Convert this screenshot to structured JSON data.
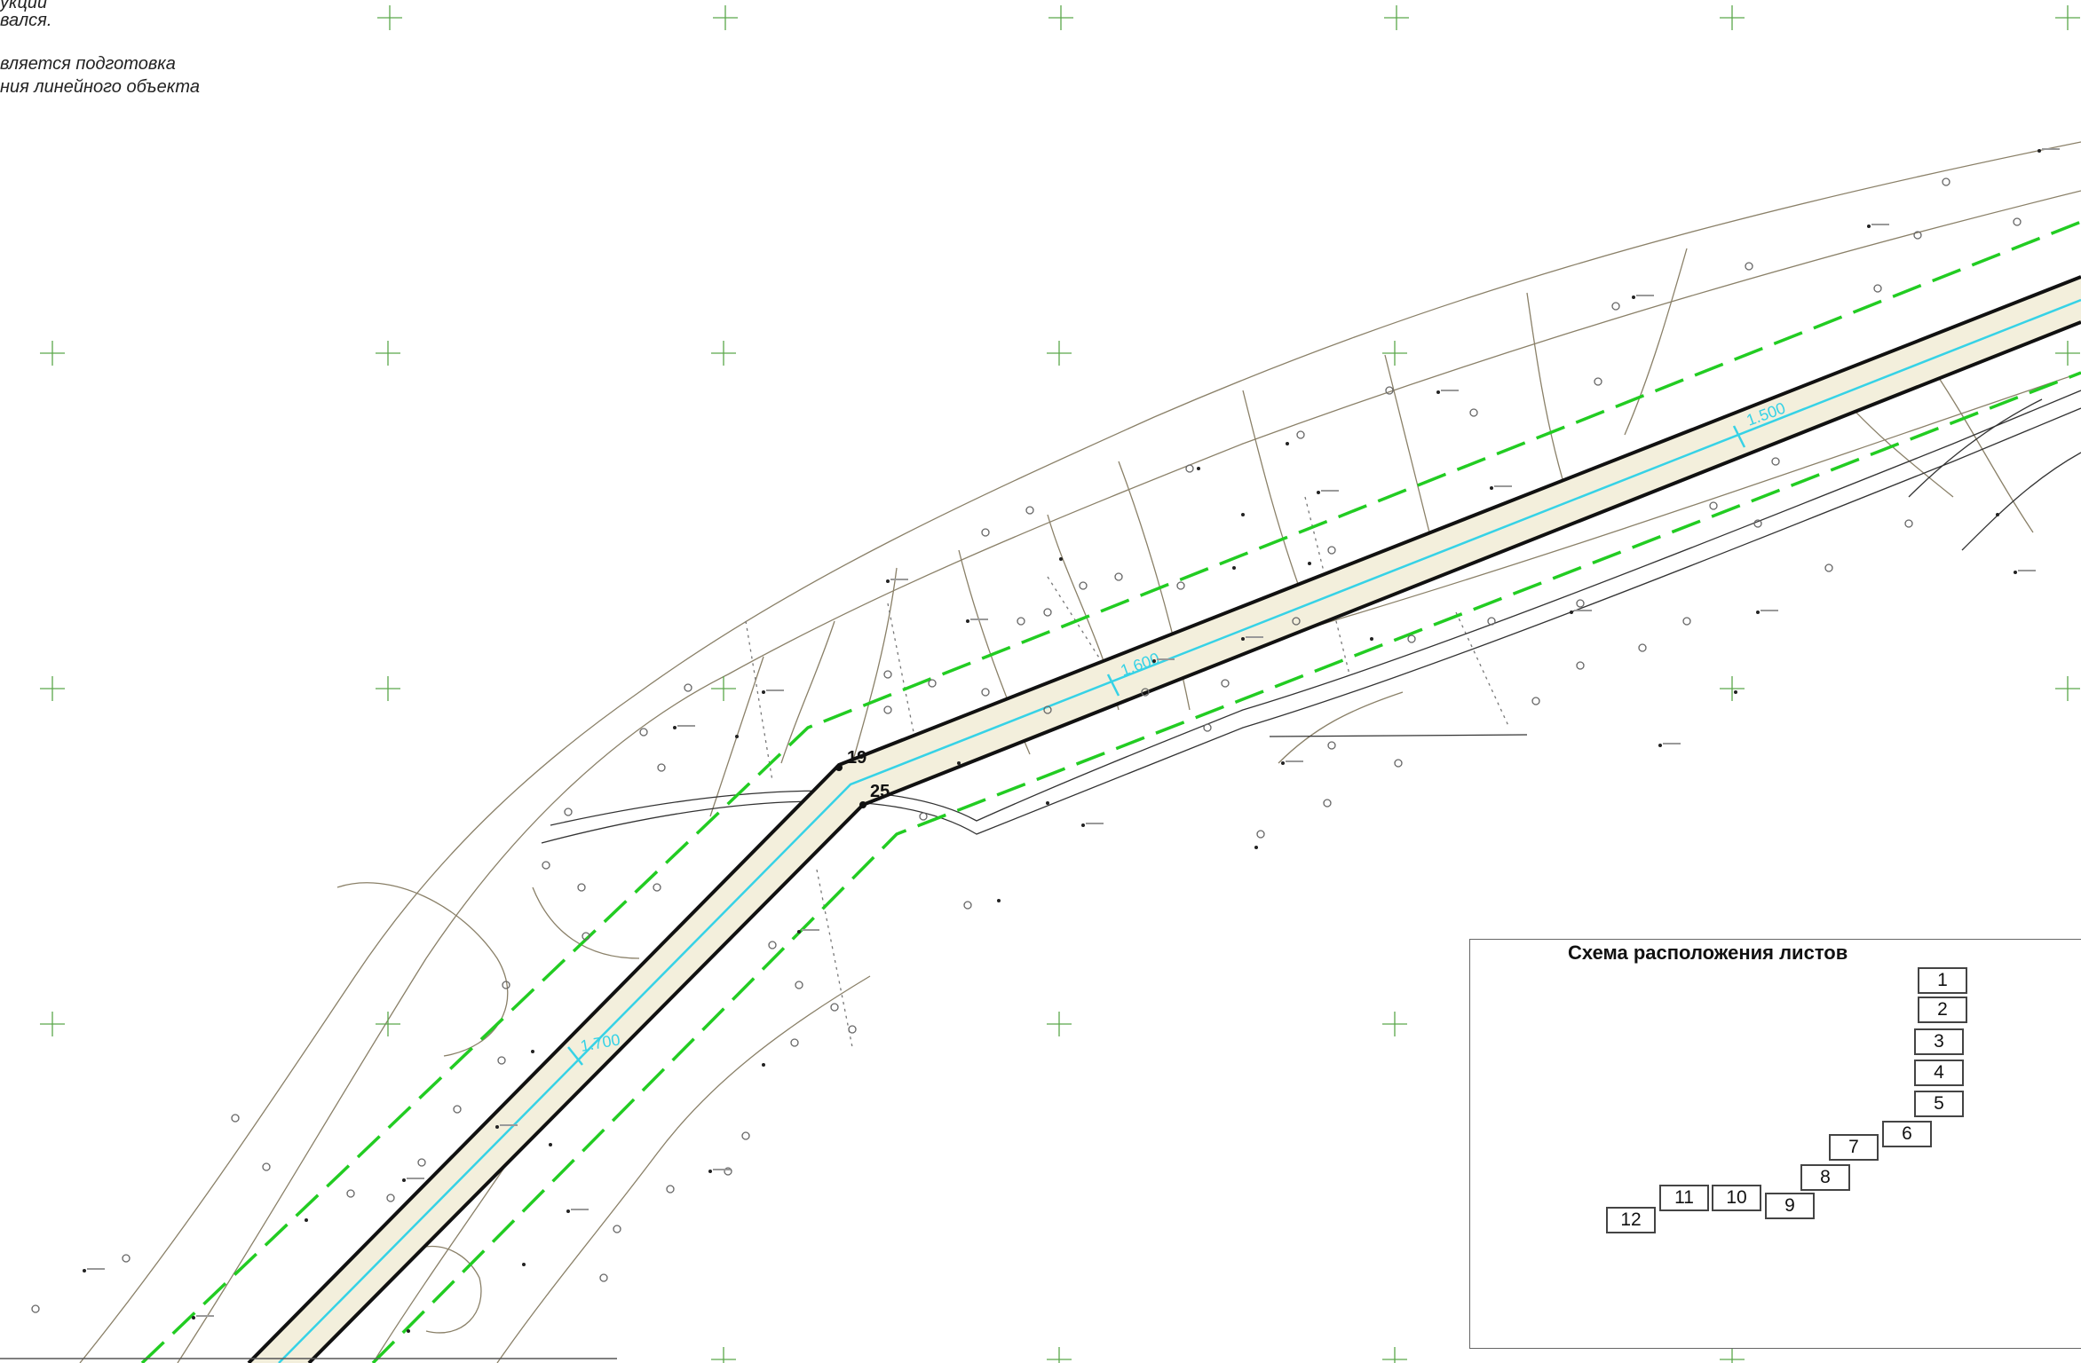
{
  "notes": [
    "укции",
    "вался.",
    "вляется подготовка",
    "ния линейного объекта"
  ],
  "markers": {
    "p19": "19",
    "p25": "25"
  },
  "chainage": [
    "1.500",
    "1.600",
    "1.700"
  ],
  "scheme": {
    "title": "Схема расположения листов",
    "sheets": [
      "1",
      "2",
      "3",
      "4",
      "5",
      "6",
      "7",
      "8",
      "9",
      "10",
      "11",
      "12"
    ]
  },
  "colors": {
    "corridor_edge": "#111111",
    "axis": "#36d2e6",
    "buffer": "#22cc22",
    "contour": "#8a8068",
    "fill": "#f3efdc"
  }
}
